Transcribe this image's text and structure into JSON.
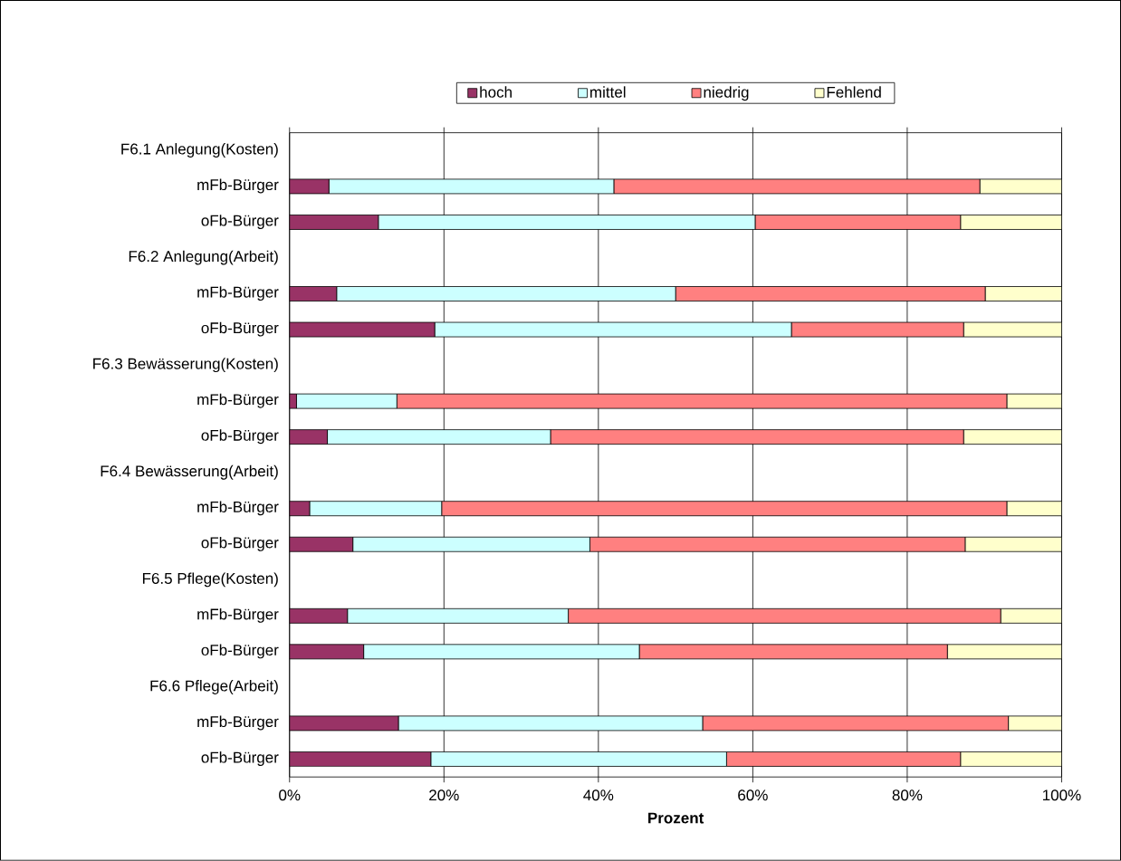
{
  "chart_data": {
    "type": "bar",
    "orientation": "horizontal",
    "stacked": true,
    "xlabel": "Prozent",
    "categories": [
      "F6.1 Anlegung(Kosten)",
      "mFb-Bürger",
      "oFb-Bürger",
      "F6.2 Anlegung(Arbeit)",
      "mFb-Bürger",
      "oFb-Bürger",
      "F6.3 Bewässerung(Kosten)",
      "mFb-Bürger",
      "oFb-Bürger",
      "F6.4 Bewässerung(Arbeit)",
      "mFb-Bürger",
      "oFb-Bürger",
      "F6.5 Pflege(Kosten)",
      "mFb-Bürger",
      "oFb-Bürger",
      "F6.6 Pflege(Arbeit)",
      "mFb-Bürger",
      "oFb-Bürger"
    ],
    "series": [
      {
        "name": "hoch",
        "color": "#993366",
        "values": [
          null,
          5.1,
          11.5,
          null,
          6.1,
          18.8,
          null,
          0.9,
          4.9,
          null,
          2.6,
          8.2,
          null,
          7.5,
          9.6,
          null,
          14.1,
          18.3
        ]
      },
      {
        "name": "mittel",
        "color": "#ccffff",
        "values": [
          null,
          36.9,
          48.8,
          null,
          43.9,
          46.2,
          null,
          13.0,
          28.9,
          null,
          17.1,
          30.7,
          null,
          28.6,
          35.7,
          null,
          39.4,
          38.3
        ]
      },
      {
        "name": "niedrig",
        "color": "#ff8080",
        "values": [
          null,
          47.4,
          26.6,
          null,
          40.1,
          22.3,
          null,
          79.0,
          53.5,
          null,
          73.2,
          48.6,
          null,
          56.0,
          39.9,
          null,
          39.6,
          30.3
        ]
      },
      {
        "name": "Fehlend",
        "color": "#ffffcc",
        "values": [
          null,
          10.6,
          13.1,
          null,
          9.9,
          12.7,
          null,
          7.1,
          12.7,
          null,
          7.1,
          12.5,
          null,
          7.9,
          14.8,
          null,
          6.9,
          13.1
        ]
      }
    ],
    "xlim": [
      0,
      100
    ],
    "xticks": [
      {
        "value": 0,
        "label": "0%"
      },
      {
        "value": 20,
        "label": "20%"
      },
      {
        "value": 40,
        "label": "40%"
      },
      {
        "value": 60,
        "label": "60%"
      },
      {
        "value": 80,
        "label": "80%"
      },
      {
        "value": 100,
        "label": "100%"
      }
    ],
    "grid": "x",
    "legend": "top"
  }
}
